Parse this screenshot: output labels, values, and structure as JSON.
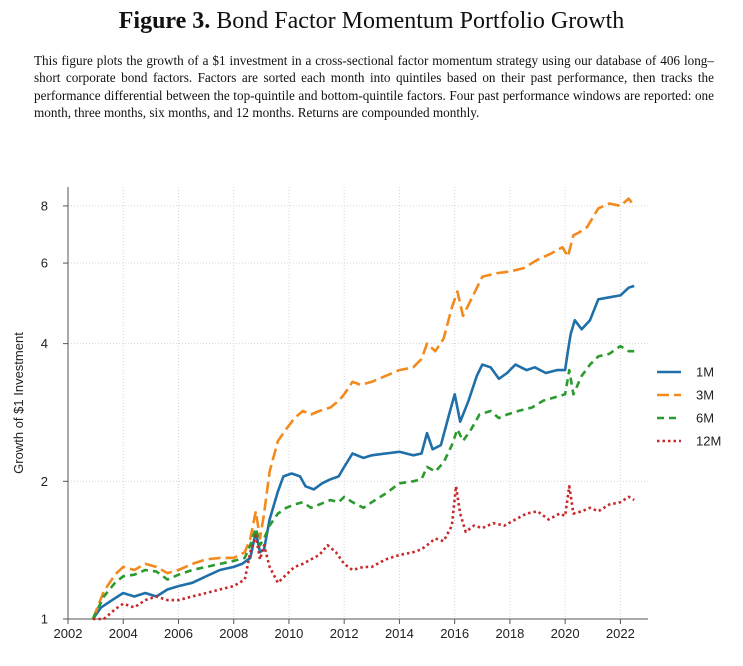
{
  "figure": {
    "label": "Figure 3.",
    "title": "Bond Factor Momentum Portfolio Growth",
    "caption": "This figure plots the growth of a $1 investment in a cross-sectional factor momentum strategy using our database of 406 long–short corporate bond factors. Factors are sorted each month into quintiles based on their past performance, then tracks the performance differential between the top-quintile and bottom-quintile factors. Four past performance windows are reported: one month, three months, six months, and 12 months. Returns are compounded monthly."
  },
  "chart_data": {
    "type": "line",
    "title": "",
    "xlabel": "",
    "ylabel": "Growth of $1 Investment",
    "y_scale": "log",
    "xlim": [
      2002,
      2023
    ],
    "ylim": [
      1,
      8.8
    ],
    "x_ticks": [
      2002,
      2004,
      2006,
      2008,
      2010,
      2012,
      2014,
      2016,
      2018,
      2020,
      2022
    ],
    "y_ticks": [
      1,
      2,
      4,
      6,
      8
    ],
    "grid": true,
    "legend_position": "right",
    "series": [
      {
        "name": "1M",
        "color": "#1f6fa8",
        "dash": "solid",
        "points": [
          [
            2002.9,
            1.0
          ],
          [
            2003.2,
            1.06
          ],
          [
            2003.6,
            1.1
          ],
          [
            2004.0,
            1.14
          ],
          [
            2004.4,
            1.12
          ],
          [
            2004.8,
            1.14
          ],
          [
            2005.2,
            1.12
          ],
          [
            2005.6,
            1.16
          ],
          [
            2006.0,
            1.18
          ],
          [
            2006.5,
            1.2
          ],
          [
            2007.0,
            1.24
          ],
          [
            2007.5,
            1.28
          ],
          [
            2008.0,
            1.3
          ],
          [
            2008.3,
            1.32
          ],
          [
            2008.6,
            1.36
          ],
          [
            2008.8,
            1.55
          ],
          [
            2008.95,
            1.4
          ],
          [
            2009.1,
            1.42
          ],
          [
            2009.3,
            1.65
          ],
          [
            2009.6,
            1.9
          ],
          [
            2009.8,
            2.05
          ],
          [
            2010.1,
            2.08
          ],
          [
            2010.4,
            2.05
          ],
          [
            2010.6,
            1.95
          ],
          [
            2010.9,
            1.92
          ],
          [
            2011.2,
            1.98
          ],
          [
            2011.5,
            2.02
          ],
          [
            2011.8,
            2.05
          ],
          [
            2012.0,
            2.15
          ],
          [
            2012.3,
            2.3
          ],
          [
            2012.7,
            2.25
          ],
          [
            2013.0,
            2.28
          ],
          [
            2013.5,
            2.3
          ],
          [
            2014.0,
            2.32
          ],
          [
            2014.5,
            2.28
          ],
          [
            2014.8,
            2.3
          ],
          [
            2015.0,
            2.55
          ],
          [
            2015.2,
            2.35
          ],
          [
            2015.5,
            2.4
          ],
          [
            2015.8,
            2.8
          ],
          [
            2016.0,
            3.1
          ],
          [
            2016.2,
            2.7
          ],
          [
            2016.5,
            3.0
          ],
          [
            2016.8,
            3.4
          ],
          [
            2017.0,
            3.6
          ],
          [
            2017.3,
            3.55
          ],
          [
            2017.6,
            3.35
          ],
          [
            2017.9,
            3.45
          ],
          [
            2018.2,
            3.6
          ],
          [
            2018.6,
            3.5
          ],
          [
            2018.9,
            3.55
          ],
          [
            2019.3,
            3.45
          ],
          [
            2019.7,
            3.5
          ],
          [
            2020.0,
            3.5
          ],
          [
            2020.1,
            3.85
          ],
          [
            2020.2,
            4.2
          ],
          [
            2020.35,
            4.5
          ],
          [
            2020.6,
            4.3
          ],
          [
            2020.9,
            4.5
          ],
          [
            2021.2,
            5.0
          ],
          [
            2021.6,
            5.05
          ],
          [
            2022.0,
            5.1
          ],
          [
            2022.3,
            5.3
          ],
          [
            2022.5,
            5.35
          ]
        ]
      },
      {
        "name": "3M",
        "color": "#f28a1e",
        "dash": "long-dash",
        "points": [
          [
            2002.9,
            1.0
          ],
          [
            2003.3,
            1.15
          ],
          [
            2003.7,
            1.25
          ],
          [
            2004.0,
            1.3
          ],
          [
            2004.4,
            1.28
          ],
          [
            2004.8,
            1.32
          ],
          [
            2005.2,
            1.3
          ],
          [
            2005.6,
            1.26
          ],
          [
            2006.0,
            1.28
          ],
          [
            2006.5,
            1.32
          ],
          [
            2007.0,
            1.35
          ],
          [
            2007.5,
            1.36
          ],
          [
            2008.0,
            1.36
          ],
          [
            2008.4,
            1.4
          ],
          [
            2008.6,
            1.5
          ],
          [
            2008.8,
            1.72
          ],
          [
            2008.95,
            1.5
          ],
          [
            2009.1,
            1.7
          ],
          [
            2009.3,
            2.1
          ],
          [
            2009.6,
            2.45
          ],
          [
            2009.9,
            2.6
          ],
          [
            2010.2,
            2.75
          ],
          [
            2010.5,
            2.85
          ],
          [
            2010.8,
            2.8
          ],
          [
            2011.1,
            2.85
          ],
          [
            2011.5,
            2.9
          ],
          [
            2011.8,
            3.0
          ],
          [
            2012.0,
            3.1
          ],
          [
            2012.3,
            3.3
          ],
          [
            2012.6,
            3.25
          ],
          [
            2013.0,
            3.3
          ],
          [
            2013.5,
            3.4
          ],
          [
            2014.0,
            3.5
          ],
          [
            2014.5,
            3.55
          ],
          [
            2014.8,
            3.7
          ],
          [
            2015.0,
            4.0
          ],
          [
            2015.3,
            3.85
          ],
          [
            2015.6,
            4.1
          ],
          [
            2015.9,
            4.8
          ],
          [
            2016.1,
            5.2
          ],
          [
            2016.3,
            4.6
          ],
          [
            2016.6,
            5.0
          ],
          [
            2017.0,
            5.6
          ],
          [
            2017.5,
            5.7
          ],
          [
            2018.0,
            5.75
          ],
          [
            2018.5,
            5.85
          ],
          [
            2019.0,
            6.1
          ],
          [
            2019.5,
            6.3
          ],
          [
            2019.9,
            6.5
          ],
          [
            2020.1,
            6.2
          ],
          [
            2020.3,
            6.9
          ],
          [
            2020.5,
            7.0
          ],
          [
            2020.8,
            7.2
          ],
          [
            2021.2,
            7.9
          ],
          [
            2021.6,
            8.1
          ],
          [
            2022.0,
            8.0
          ],
          [
            2022.3,
            8.3
          ],
          [
            2022.5,
            8.0
          ]
        ]
      },
      {
        "name": "6M",
        "color": "#2b9a2f",
        "dash": "dash",
        "points": [
          [
            2002.9,
            1.0
          ],
          [
            2003.3,
            1.12
          ],
          [
            2003.7,
            1.2
          ],
          [
            2004.0,
            1.24
          ],
          [
            2004.4,
            1.25
          ],
          [
            2004.8,
            1.28
          ],
          [
            2005.2,
            1.27
          ],
          [
            2005.6,
            1.22
          ],
          [
            2006.0,
            1.25
          ],
          [
            2006.5,
            1.28
          ],
          [
            2007.0,
            1.3
          ],
          [
            2007.5,
            1.32
          ],
          [
            2008.0,
            1.34
          ],
          [
            2008.4,
            1.36
          ],
          [
            2008.6,
            1.45
          ],
          [
            2008.8,
            1.58
          ],
          [
            2008.95,
            1.45
          ],
          [
            2009.1,
            1.5
          ],
          [
            2009.3,
            1.6
          ],
          [
            2009.6,
            1.7
          ],
          [
            2009.9,
            1.75
          ],
          [
            2010.2,
            1.78
          ],
          [
            2010.5,
            1.8
          ],
          [
            2010.8,
            1.75
          ],
          [
            2011.1,
            1.78
          ],
          [
            2011.5,
            1.82
          ],
          [
            2011.8,
            1.8
          ],
          [
            2012.0,
            1.85
          ],
          [
            2012.3,
            1.8
          ],
          [
            2012.7,
            1.75
          ],
          [
            2013.0,
            1.8
          ],
          [
            2013.5,
            1.88
          ],
          [
            2014.0,
            1.98
          ],
          [
            2014.5,
            2.0
          ],
          [
            2014.8,
            2.02
          ],
          [
            2015.0,
            2.15
          ],
          [
            2015.3,
            2.1
          ],
          [
            2015.6,
            2.2
          ],
          [
            2015.9,
            2.4
          ],
          [
            2016.1,
            2.6
          ],
          [
            2016.3,
            2.45
          ],
          [
            2016.6,
            2.6
          ],
          [
            2016.9,
            2.8
          ],
          [
            2017.3,
            2.85
          ],
          [
            2017.6,
            2.75
          ],
          [
            2017.9,
            2.8
          ],
          [
            2018.3,
            2.85
          ],
          [
            2018.8,
            2.9
          ],
          [
            2019.2,
            3.0
          ],
          [
            2019.6,
            3.05
          ],
          [
            2020.0,
            3.1
          ],
          [
            2020.15,
            3.5
          ],
          [
            2020.3,
            3.1
          ],
          [
            2020.6,
            3.4
          ],
          [
            2020.9,
            3.6
          ],
          [
            2021.2,
            3.75
          ],
          [
            2021.6,
            3.8
          ],
          [
            2022.0,
            3.95
          ],
          [
            2022.3,
            3.85
          ],
          [
            2022.5,
            3.85
          ]
        ]
      },
      {
        "name": "12M",
        "color": "#c8282a",
        "dash": "dot",
        "points": [
          [
            2002.9,
            1.0
          ],
          [
            2003.3,
            1.0
          ],
          [
            2003.7,
            1.05
          ],
          [
            2004.0,
            1.08
          ],
          [
            2004.4,
            1.06
          ],
          [
            2004.8,
            1.1
          ],
          [
            2005.2,
            1.12
          ],
          [
            2005.6,
            1.1
          ],
          [
            2006.0,
            1.1
          ],
          [
            2006.5,
            1.12
          ],
          [
            2007.0,
            1.14
          ],
          [
            2007.5,
            1.16
          ],
          [
            2008.0,
            1.18
          ],
          [
            2008.4,
            1.22
          ],
          [
            2008.6,
            1.4
          ],
          [
            2008.8,
            1.52
          ],
          [
            2008.95,
            1.35
          ],
          [
            2009.1,
            1.45
          ],
          [
            2009.3,
            1.3
          ],
          [
            2009.6,
            1.2
          ],
          [
            2009.9,
            1.25
          ],
          [
            2010.2,
            1.3
          ],
          [
            2010.5,
            1.32
          ],
          [
            2010.8,
            1.35
          ],
          [
            2011.1,
            1.38
          ],
          [
            2011.4,
            1.45
          ],
          [
            2011.7,
            1.4
          ],
          [
            2012.0,
            1.32
          ],
          [
            2012.3,
            1.28
          ],
          [
            2012.7,
            1.3
          ],
          [
            2013.0,
            1.3
          ],
          [
            2013.5,
            1.35
          ],
          [
            2014.0,
            1.38
          ],
          [
            2014.5,
            1.4
          ],
          [
            2014.8,
            1.42
          ],
          [
            2015.0,
            1.45
          ],
          [
            2015.3,
            1.5
          ],
          [
            2015.6,
            1.48
          ],
          [
            2015.9,
            1.6
          ],
          [
            2016.05,
            1.95
          ],
          [
            2016.2,
            1.7
          ],
          [
            2016.4,
            1.55
          ],
          [
            2016.7,
            1.6
          ],
          [
            2017.0,
            1.58
          ],
          [
            2017.4,
            1.62
          ],
          [
            2017.8,
            1.6
          ],
          [
            2018.2,
            1.65
          ],
          [
            2018.6,
            1.7
          ],
          [
            2019.0,
            1.72
          ],
          [
            2019.4,
            1.65
          ],
          [
            2019.8,
            1.7
          ],
          [
            2020.0,
            1.68
          ],
          [
            2020.15,
            1.95
          ],
          [
            2020.3,
            1.7
          ],
          [
            2020.6,
            1.72
          ],
          [
            2020.9,
            1.75
          ],
          [
            2021.2,
            1.72
          ],
          [
            2021.6,
            1.78
          ],
          [
            2022.0,
            1.8
          ],
          [
            2022.3,
            1.85
          ],
          [
            2022.5,
            1.82
          ]
        ]
      }
    ]
  }
}
